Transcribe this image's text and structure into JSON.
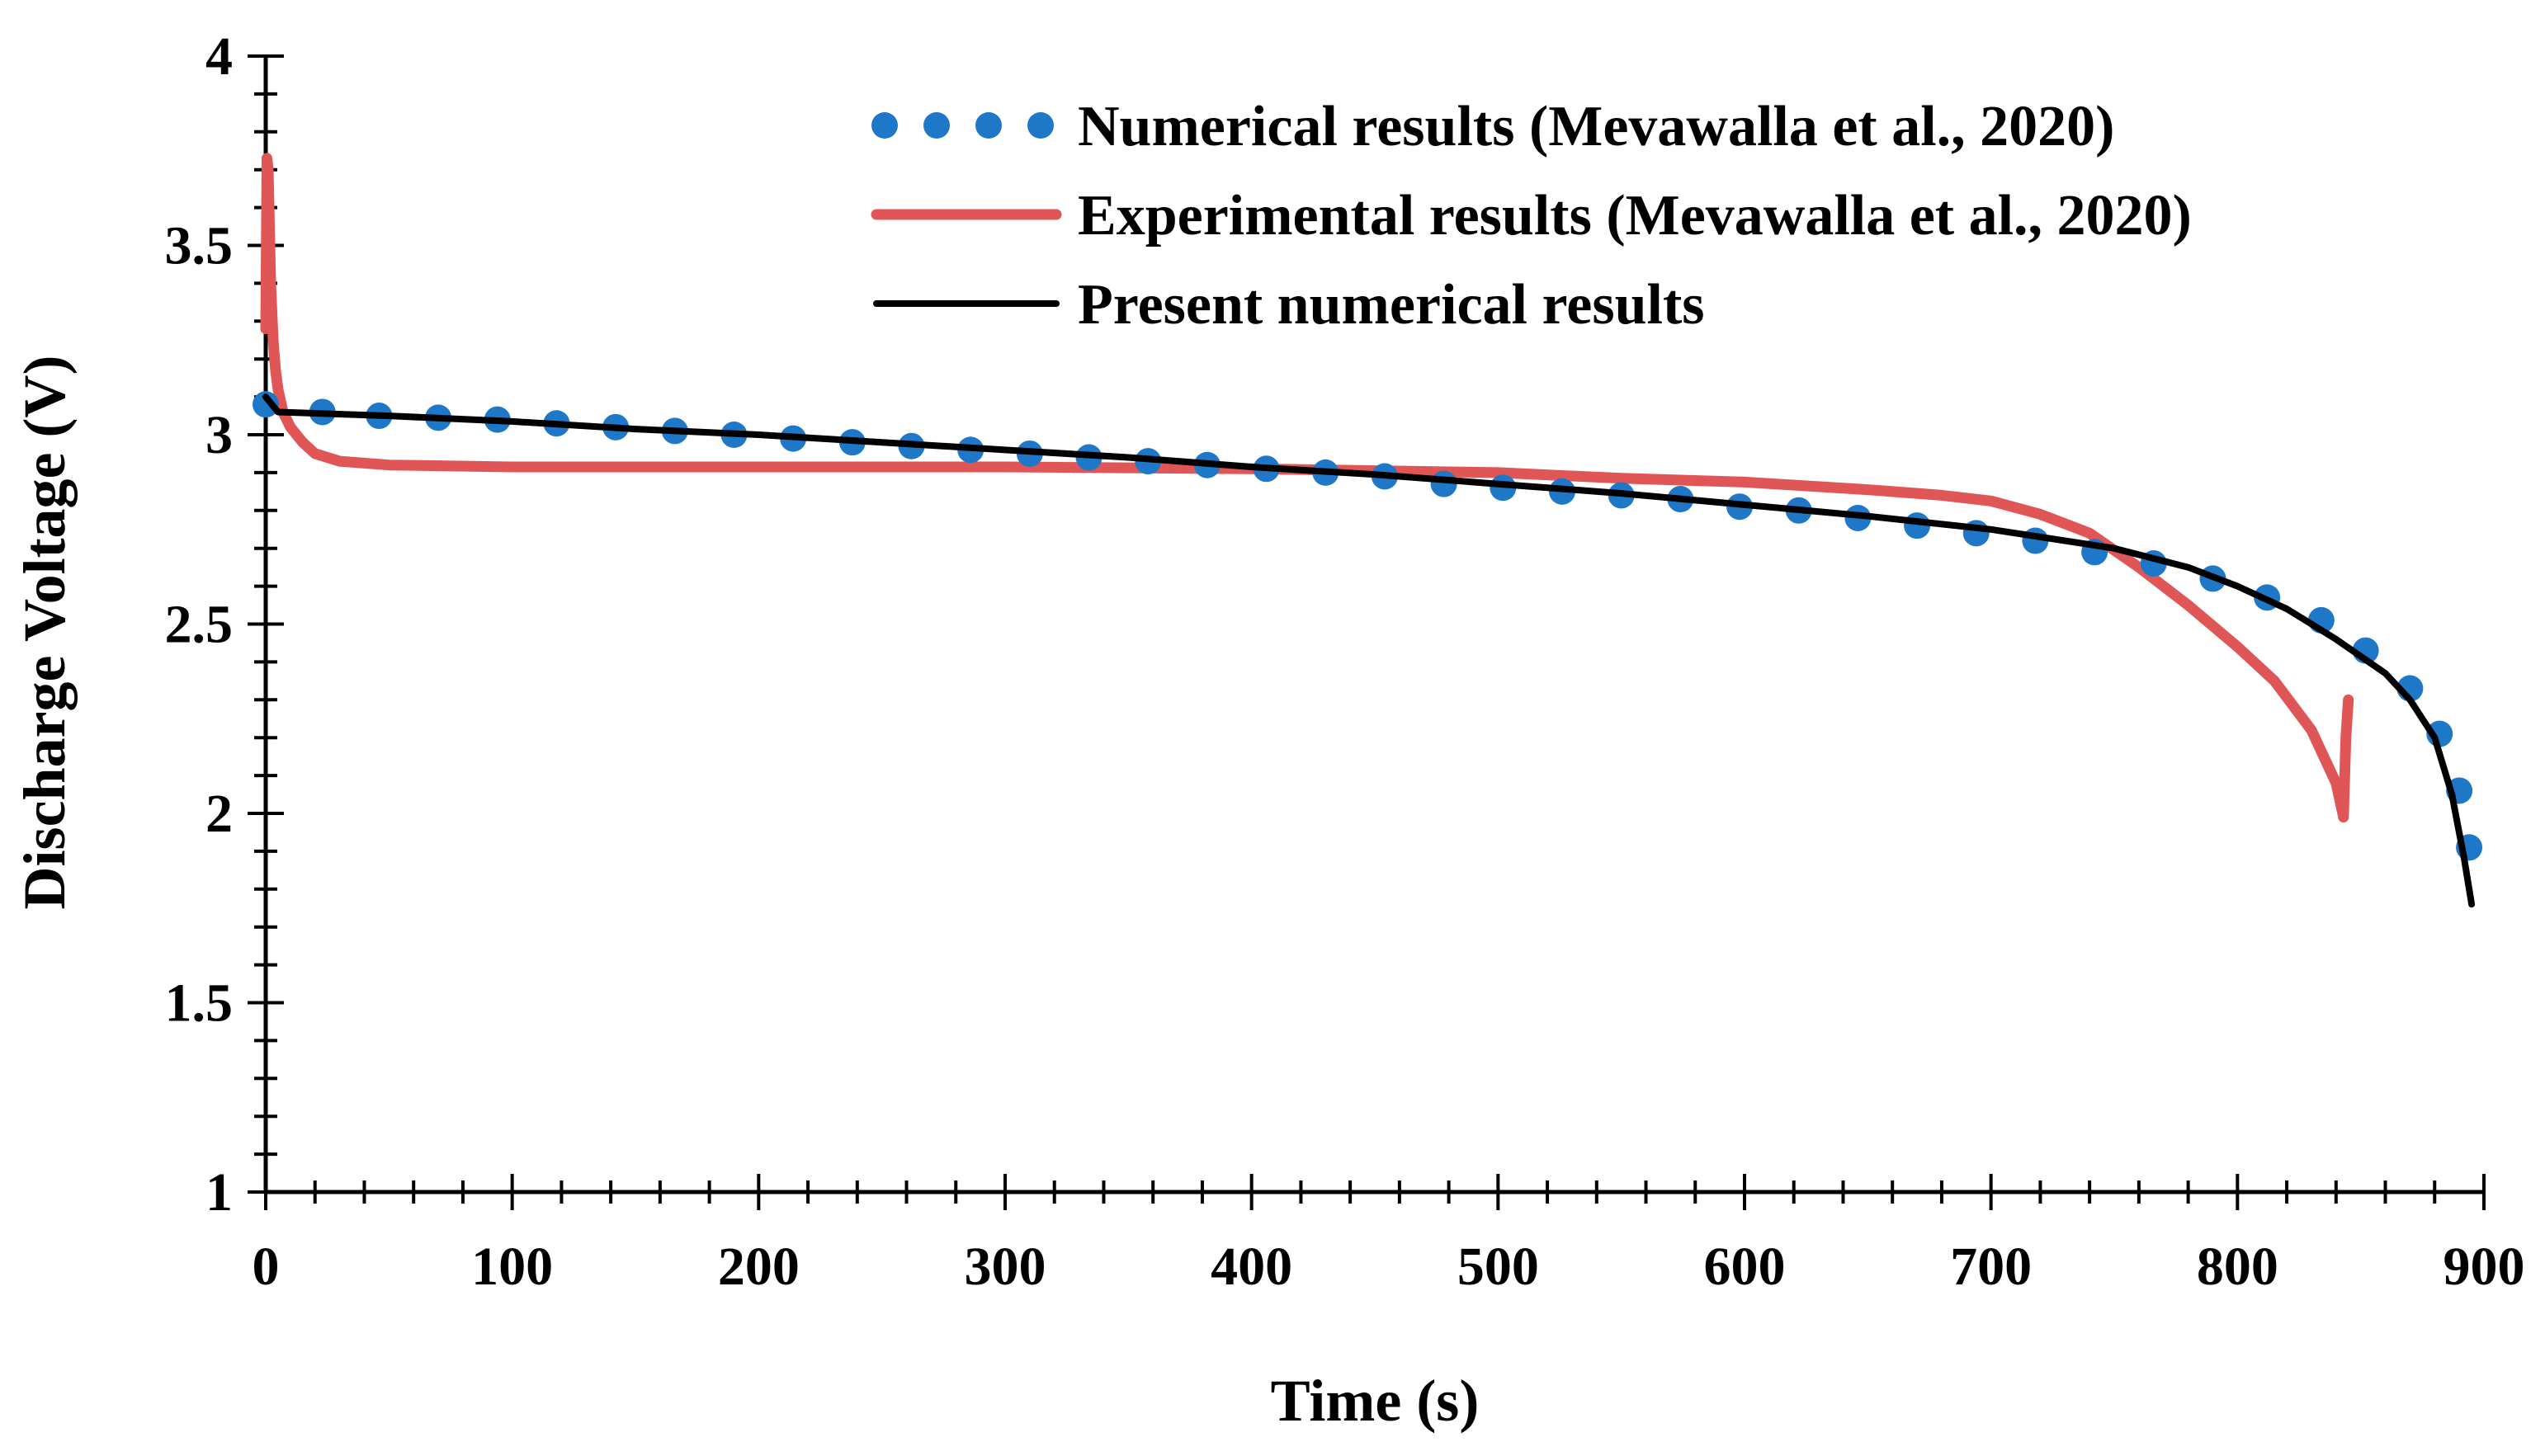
{
  "chart_data": {
    "type": "line",
    "title": "",
    "xlabel": "Time (s)",
    "ylabel": "Discharge Voltage (V)",
    "xlim": [
      0,
      900
    ],
    "ylim": [
      1,
      4
    ],
    "xticks": [
      0,
      100,
      200,
      300,
      400,
      500,
      600,
      700,
      800,
      900
    ],
    "yticks": [
      1,
      1.5,
      2,
      2.5,
      3,
      3.5,
      4
    ],
    "xtick_labels": [
      "0",
      "100",
      "200",
      "300",
      "400",
      "500",
      "600",
      "700",
      "800",
      "900"
    ],
    "ytick_labels": [
      "1",
      "1.5",
      "2",
      "2.5",
      "3",
      "3.5",
      "4"
    ],
    "legend_position": "top-right",
    "series": [
      {
        "name": "Numerical results (Mevawalla et al., 2020)",
        "style": "dotted-markers",
        "color": "#1f77c8",
        "x": [
          0,
          23,
          46,
          70,
          94,
          118,
          142,
          166,
          190,
          214,
          238,
          262,
          286,
          310,
          334,
          358,
          382,
          406,
          430,
          454,
          478,
          502,
          526,
          550,
          574,
          598,
          622,
          646,
          670,
          694,
          718,
          742,
          766,
          790,
          812,
          834,
          852,
          870,
          882,
          890,
          894
        ],
        "y": [
          3.08,
          3.06,
          3.05,
          3.045,
          3.04,
          3.03,
          3.02,
          3.01,
          3.0,
          2.99,
          2.98,
          2.97,
          2.96,
          2.95,
          2.94,
          2.93,
          2.92,
          2.91,
          2.9,
          2.89,
          2.87,
          2.86,
          2.85,
          2.84,
          2.83,
          2.81,
          2.8,
          2.78,
          2.76,
          2.74,
          2.72,
          2.69,
          2.66,
          2.62,
          2.57,
          2.51,
          2.43,
          2.33,
          2.21,
          2.06,
          1.91
        ]
      },
      {
        "name": "Experimental results (Mevawalla et al., 2020)",
        "style": "thick-line",
        "color": "#e05555",
        "x": [
          0,
          0.5,
          1,
          1.5,
          2,
          3,
          4,
          5,
          7,
          10,
          15,
          20,
          30,
          50,
          100,
          200,
          300,
          400,
          450,
          500,
          550,
          600,
          650,
          680,
          700,
          720,
          740,
          760,
          780,
          800,
          815,
          830,
          840,
          843,
          844,
          845
        ],
        "y": [
          3.28,
          3.73,
          3.7,
          3.55,
          3.4,
          3.25,
          3.17,
          3.12,
          3.06,
          3.02,
          2.98,
          2.95,
          2.93,
          2.92,
          2.915,
          2.915,
          2.915,
          2.91,
          2.905,
          2.9,
          2.885,
          2.875,
          2.855,
          2.84,
          2.825,
          2.79,
          2.74,
          2.65,
          2.55,
          2.44,
          2.35,
          2.22,
          2.08,
          1.99,
          2.2,
          2.3
        ]
      },
      {
        "name": "Present numerical results",
        "style": "line",
        "color": "#000000",
        "x": [
          0,
          5,
          50,
          100,
          150,
          200,
          250,
          300,
          350,
          400,
          450,
          500,
          550,
          600,
          650,
          700,
          750,
          780,
          800,
          820,
          840,
          860,
          870,
          880,
          887,
          892,
          895
        ],
        "y": [
          3.1,
          3.06,
          3.05,
          3.035,
          3.015,
          3.0,
          2.98,
          2.96,
          2.94,
          2.915,
          2.895,
          2.87,
          2.845,
          2.815,
          2.785,
          2.75,
          2.7,
          2.65,
          2.6,
          2.54,
          2.46,
          2.37,
          2.3,
          2.2,
          2.05,
          1.88,
          1.76
        ]
      }
    ]
  }
}
